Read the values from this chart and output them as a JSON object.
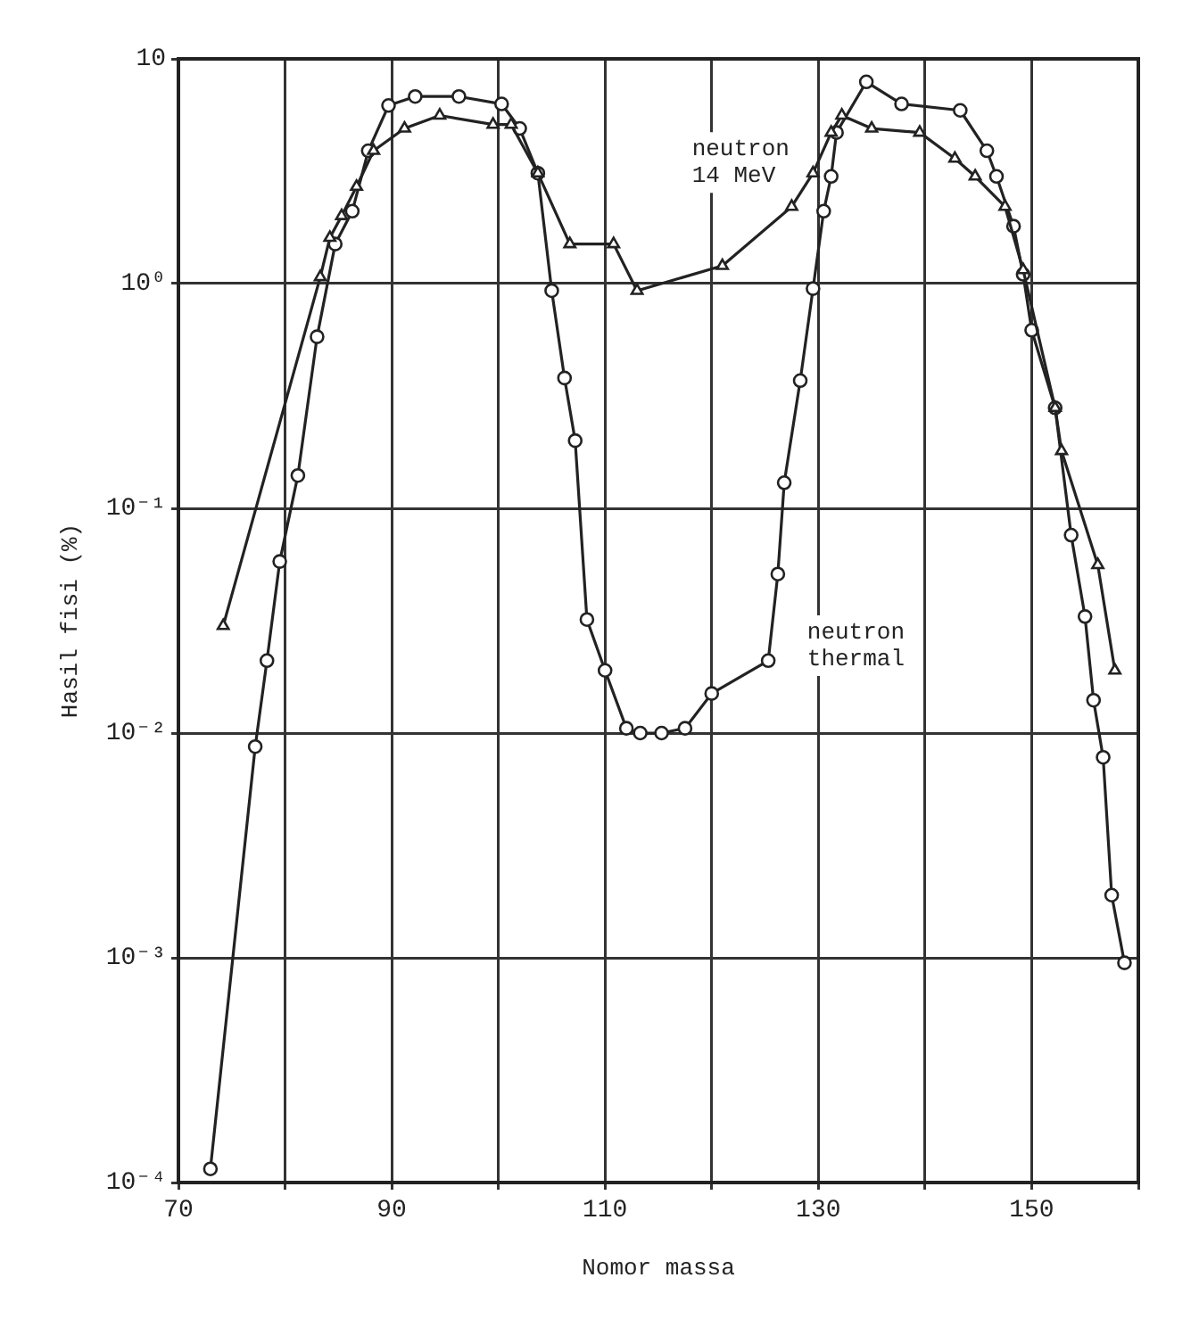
{
  "chart_data": {
    "type": "line",
    "xlabel": "Nomor massa",
    "ylabel": "Hasil fisi (%)",
    "log": "y",
    "grid": true,
    "line_style": "solid",
    "xlim": [
      70,
      160
    ],
    "xticks": [
      70,
      {
        "value": 80,
        "label": null
      },
      90,
      {
        "value": 100,
        "label": null
      },
      110,
      {
        "value": 120,
        "label": null
      },
      130,
      {
        "value": 140,
        "label": null
      },
      150,
      {
        "value": 160,
        "label": null
      }
    ],
    "ylim": [
      0.0001,
      10
    ],
    "yticks": [
      {
        "value": 0.0001,
        "label": "10⁻⁴"
      },
      {
        "value": 0.001,
        "label": "10⁻³"
      },
      {
        "value": 0.01,
        "label": "10⁻²"
      },
      {
        "value": 0.1,
        "label": "10⁻¹"
      },
      {
        "value": 1,
        "label": "10⁰"
      },
      10
    ],
    "series": [
      {
        "name": "neutron 14 MeV",
        "color": "#222222",
        "marker": "triangle",
        "x": [
          74.2,
          83.3,
          84.2,
          85.3,
          86.7,
          88.3,
          91.2,
          94.5,
          99.5,
          101.2,
          103.7,
          106.7,
          110.8,
          113,
          121,
          127.5,
          129.5,
          131.2,
          132.2,
          135,
          139.5,
          142.8,
          144.7,
          147.5,
          149.2,
          152.2,
          152.8,
          156.2,
          157.8
        ],
        "values": [
          0.03,
          1.07,
          1.6,
          2.0,
          2.7,
          3.9,
          4.9,
          5.6,
          5.1,
          5.1,
          3.1,
          1.5,
          1.5,
          0.93,
          1.2,
          2.2,
          3.1,
          4.7,
          5.6,
          4.9,
          4.7,
          3.6,
          3.0,
          2.2,
          1.15,
          0.28,
          0.18,
          0.056,
          0.019
        ]
      },
      {
        "name": "neutron thermal",
        "color": "#222222",
        "marker": "circle",
        "x": [
          73,
          77.2,
          78.3,
          79.5,
          81.2,
          83,
          84.7,
          86.3,
          87.8,
          89.7,
          92.2,
          96.3,
          100.3,
          102,
          103.7,
          105,
          106.2,
          107.2,
          108.3,
          110,
          112,
          113.3,
          115.3,
          117.5,
          120,
          125.3,
          126.2,
          126.8,
          128.3,
          129.5,
          130.5,
          131.2,
          131.7,
          134.5,
          137.8,
          143.3,
          145.8,
          146.7,
          148.3,
          149.2,
          150,
          152.2,
          153.7,
          155,
          155.8,
          156.7,
          157.5,
          158.7
        ],
        "values": [
          0.000115,
          0.0087,
          0.021,
          0.058,
          0.14,
          0.58,
          1.5,
          2.1,
          3.9,
          6.2,
          6.8,
          6.8,
          6.3,
          4.9,
          3.1,
          0.93,
          0.38,
          0.2,
          0.032,
          0.019,
          0.0105,
          0.01,
          0.01,
          0.0105,
          0.015,
          0.021,
          0.051,
          0.13,
          0.37,
          0.95,
          2.1,
          3.0,
          4.7,
          7.9,
          6.3,
          5.9,
          3.9,
          3.0,
          1.8,
          1.1,
          0.62,
          0.28,
          0.076,
          0.033,
          0.014,
          0.0078,
          0.0019,
          0.00095
        ]
      }
    ]
  }
}
